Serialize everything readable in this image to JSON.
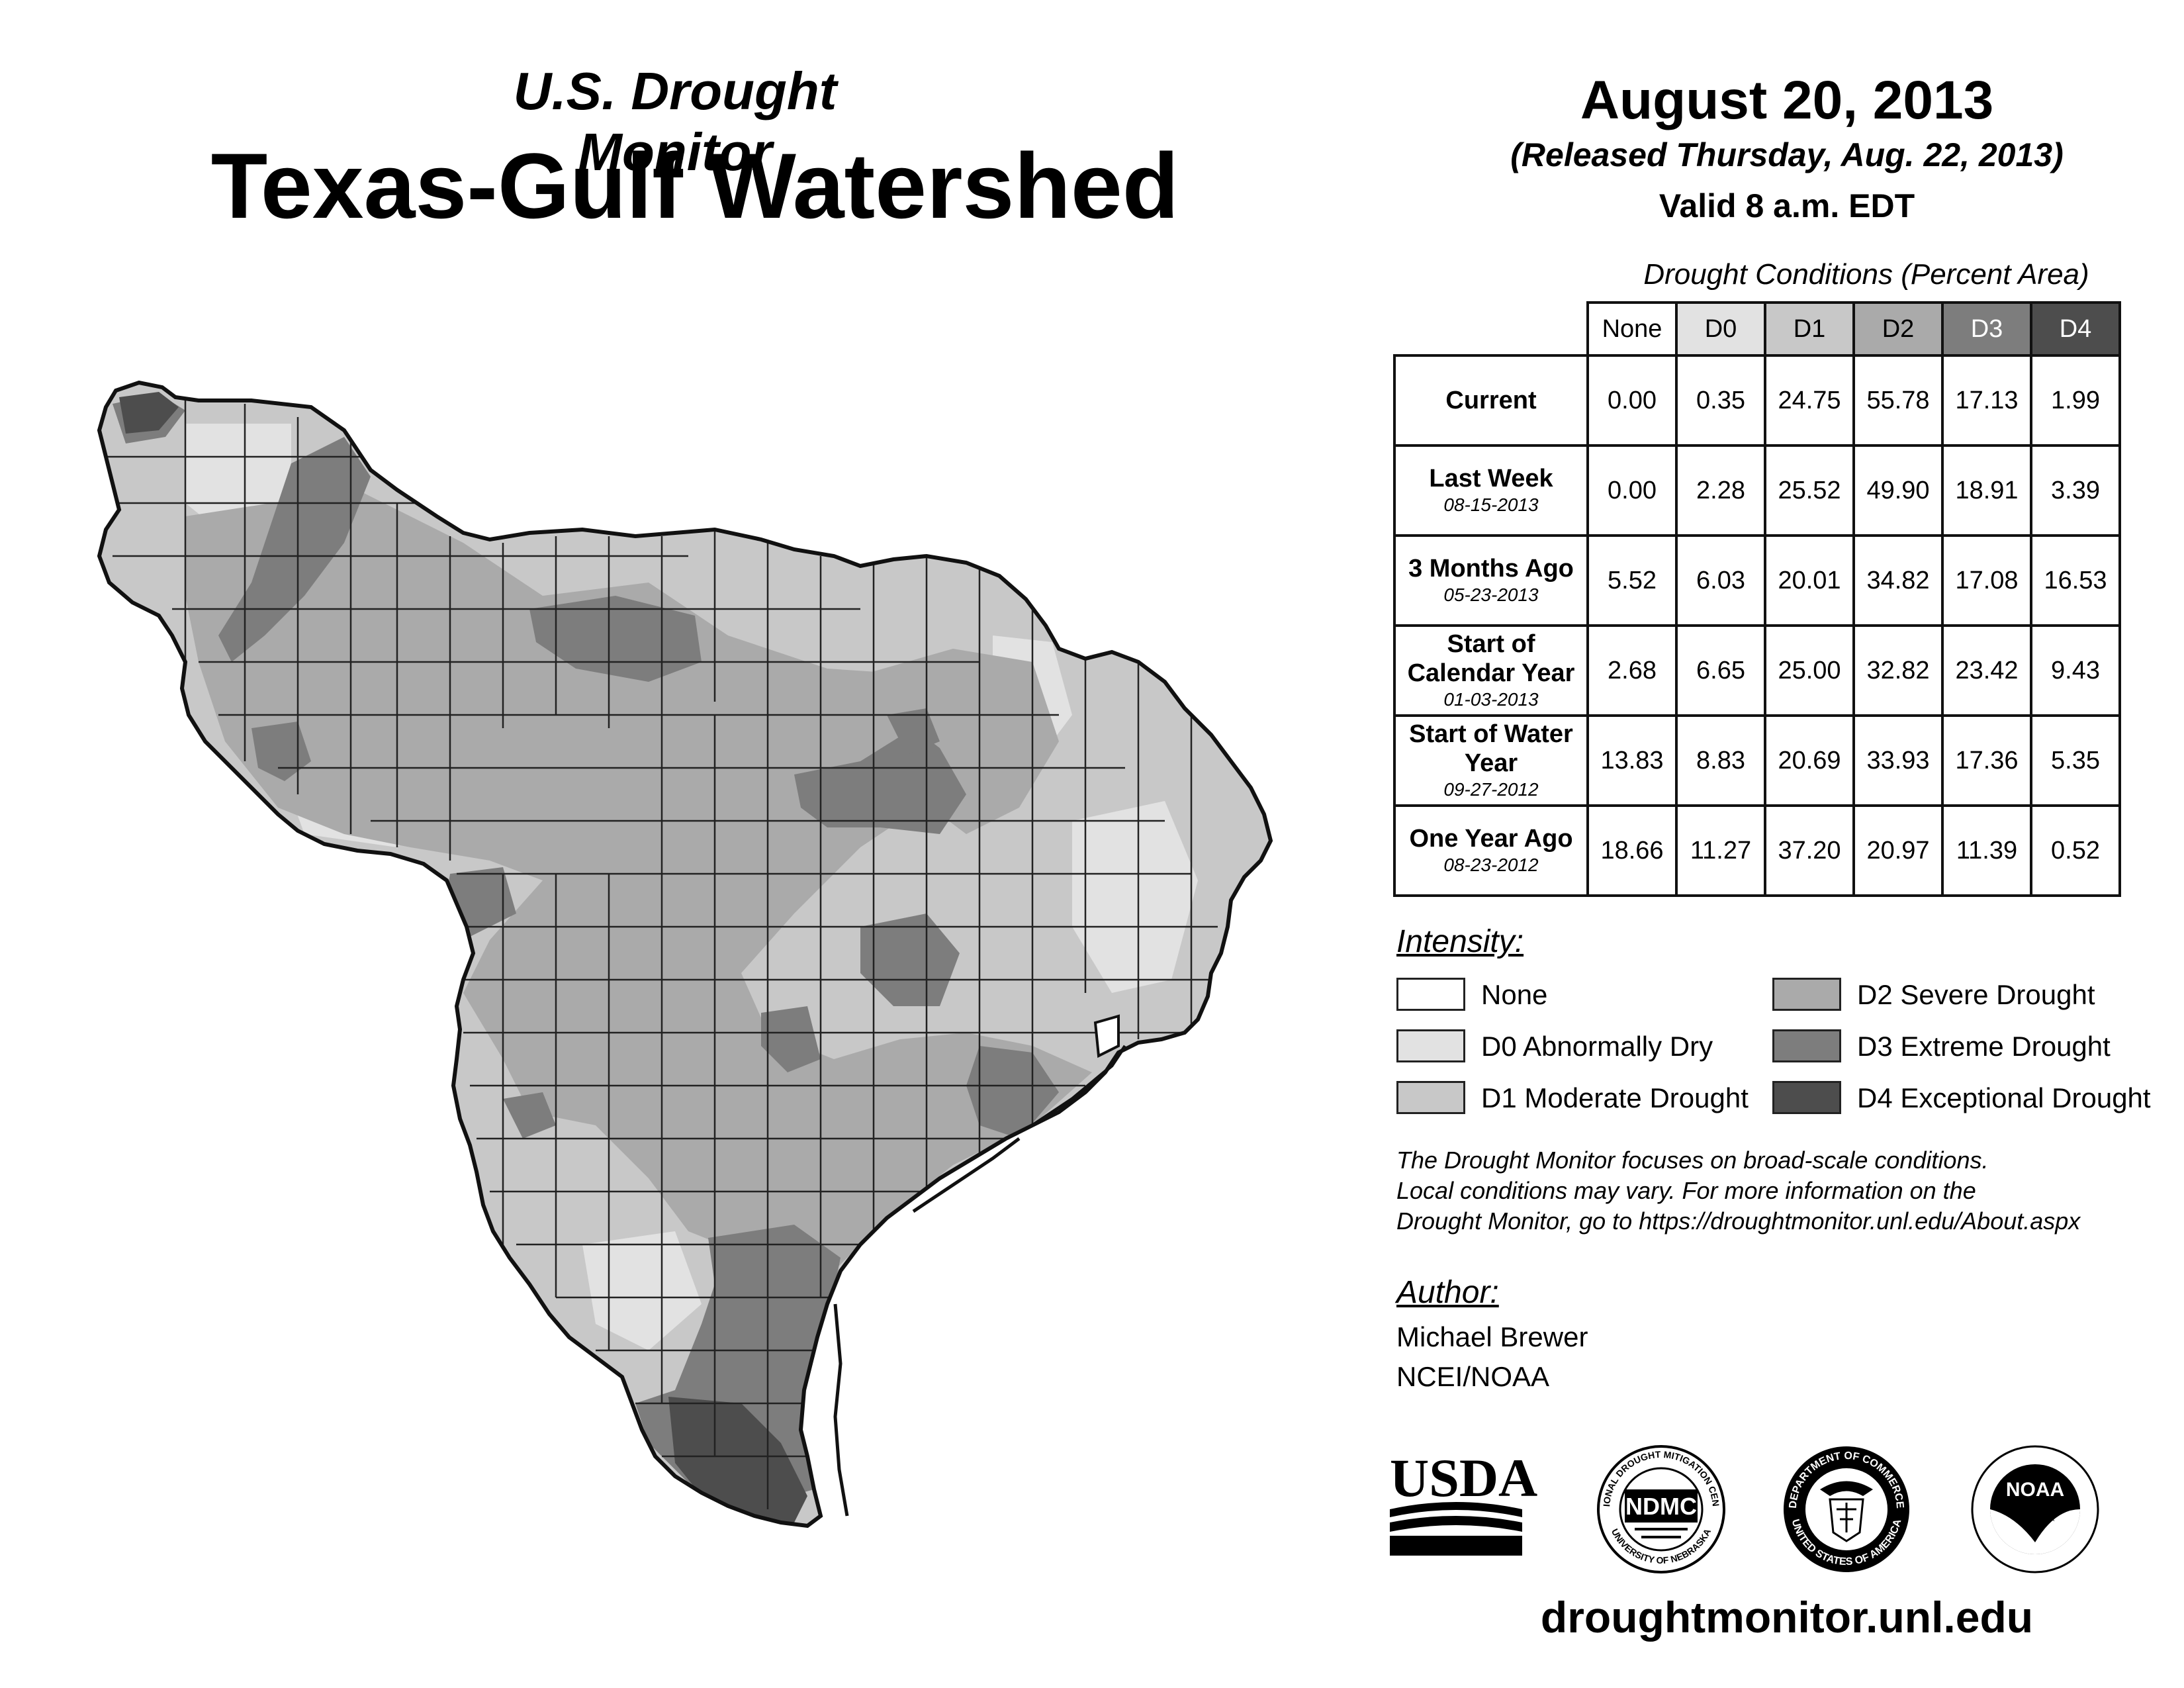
{
  "header": {
    "subtitle": "U.S. Drought Monitor",
    "title": "Texas-Gulf Watershed",
    "date": "August 20, 2013",
    "released": "(Released Thursday, Aug. 22, 2013)",
    "valid": "Valid 8 a.m. EDT"
  },
  "table": {
    "caption": "Drought Conditions (Percent Area)",
    "columns": [
      "None",
      "D0",
      "D1",
      "D2",
      "D3",
      "D4"
    ],
    "rows": [
      {
        "label": "Current",
        "date": "",
        "values": [
          "0.00",
          "0.35",
          "24.75",
          "55.78",
          "17.13",
          "1.99"
        ]
      },
      {
        "label": "Last Week",
        "date": "08-15-2013",
        "values": [
          "0.00",
          "2.28",
          "25.52",
          "49.90",
          "18.91",
          "3.39"
        ]
      },
      {
        "label": "3 Months Ago",
        "date": "05-23-2013",
        "values": [
          "5.52",
          "6.03",
          "20.01",
          "34.82",
          "17.08",
          "16.53"
        ]
      },
      {
        "label": "Start of Calendar Year",
        "date": "01-03-2013",
        "values": [
          "2.68",
          "6.65",
          "25.00",
          "32.82",
          "23.42",
          "9.43"
        ]
      },
      {
        "label": "Start of Water Year",
        "date": "09-27-2012",
        "values": [
          "13.83",
          "8.83",
          "20.69",
          "33.93",
          "17.36",
          "5.35"
        ]
      },
      {
        "label": "One Year Ago",
        "date": "08-23-2012",
        "values": [
          "18.66",
          "11.27",
          "37.20",
          "20.97",
          "11.39",
          "0.52"
        ]
      }
    ]
  },
  "legend": {
    "title": "Intensity:",
    "items": [
      {
        "label": "None",
        "color": "#ffffff"
      },
      {
        "label": "D0 Abnormally Dry",
        "color": "#e2e2e2"
      },
      {
        "label": "D1 Moderate Drought",
        "color": "#c8c8c8"
      },
      {
        "label": "D2 Severe Drought",
        "color": "#aaaaaa"
      },
      {
        "label": "D3 Extreme Drought",
        "color": "#7d7d7d"
      },
      {
        "label": "D4 Exceptional Drought",
        "color": "#4d4d4d"
      }
    ]
  },
  "note": {
    "line1": "The Drought Monitor focuses on broad-scale conditions.",
    "line2": "Local conditions may vary. For more information on the",
    "line3": "Drought Monitor, go to https://droughtmonitor.unl.edu/About.aspx"
  },
  "author": {
    "title": "Author:",
    "name": "Michael Brewer",
    "org": "NCEI/NOAA"
  },
  "logos": {
    "usda": "USDA",
    "ndmc": "NDMC",
    "ndmc_ring_top": "NATIONAL DROUGHT MITIGATION CENTER",
    "ndmc_ring_bottom": "UNIVERSITY OF NEBRASKA",
    "doc_ring_top": "DEPARTMENT OF COMMERCE",
    "doc_ring_bottom": "UNITED STATES OF AMERICA",
    "noaa": "NOAA"
  },
  "footer": "droughtmonitor.unl.edu"
}
